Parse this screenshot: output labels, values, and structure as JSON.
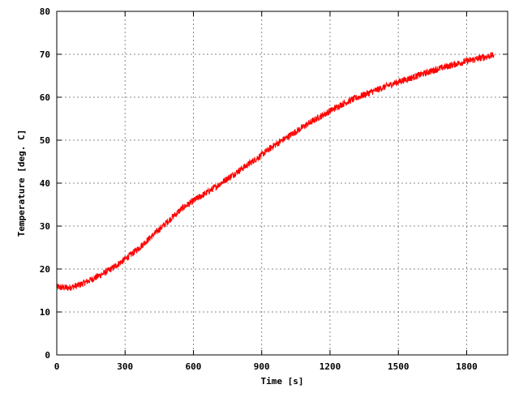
{
  "chart_data": {
    "type": "line",
    "title": "",
    "xlabel": "Time [s]",
    "ylabel": "Temperature [deg. C]",
    "xlim": [
      0,
      1980
    ],
    "ylim": [
      0,
      80
    ],
    "xticks": [
      0,
      300,
      600,
      900,
      1200,
      1500,
      1800
    ],
    "yticks": [
      0,
      10,
      20,
      30,
      40,
      50,
      60,
      70,
      80
    ],
    "xtick_labels": [
      "0",
      "300",
      "600",
      "900",
      "1200",
      "1500",
      "1800"
    ],
    "ytick_labels": [
      "0",
      "10",
      "20",
      "30",
      "40",
      "50",
      "60",
      "70",
      "80"
    ],
    "grid": true,
    "legend": "none",
    "series_color": "#ff0000",
    "series": [
      {
        "noise_amplitude": 0.8,
        "x": [
          0,
          50,
          100,
          150,
          200,
          250,
          300,
          350,
          400,
          450,
          500,
          550,
          600,
          650,
          700,
          750,
          800,
          850,
          900,
          950,
          1000,
          1050,
          1100,
          1150,
          1200,
          1250,
          1300,
          1350,
          1400,
          1450,
          1500,
          1550,
          1600,
          1650,
          1700,
          1750,
          1800,
          1850,
          1900,
          1920
        ],
        "y": [
          15.8,
          15.6,
          16.3,
          17.5,
          18.8,
          20.4,
          22.3,
          24.4,
          26.8,
          29.2,
          31.7,
          34.1,
          35.9,
          37.5,
          39.2,
          41.1,
          42.9,
          44.7,
          46.6,
          48.6,
          50.3,
          52.0,
          53.7,
          55.3,
          56.8,
          58.3,
          59.5,
          60.6,
          61.6,
          62.6,
          63.6,
          64.4,
          65.3,
          66.2,
          67.0,
          67.7,
          68.4,
          69.0,
          69.6,
          69.8
        ]
      }
    ]
  }
}
